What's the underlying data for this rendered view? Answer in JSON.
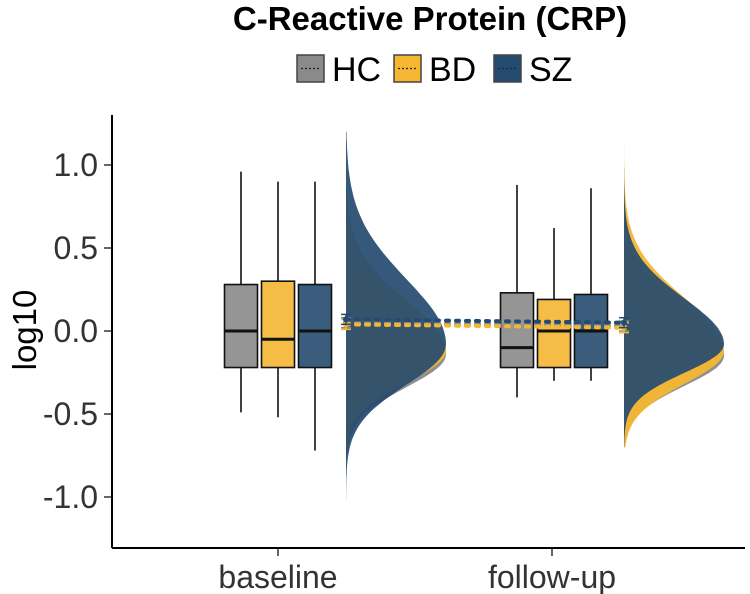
{
  "chart_data": {
    "type": "raincloud (boxplot + half-violin density + mean points)",
    "title": "C-Reactive Protein (CRP)",
    "xlabel": "",
    "ylabel": "log10",
    "ylim": [
      -1.3,
      1.3
    ],
    "yticks": [
      1.0,
      0.5,
      0.0,
      -0.5,
      -1.0
    ],
    "ytick_labels": [
      "1.0",
      "0.5",
      "0.0",
      "-0.5",
      "-1.0"
    ],
    "categories": [
      "baseline",
      "follow-up"
    ],
    "legend": [
      {
        "key": "HC",
        "label": "HC",
        "color": "#8a8a8a"
      },
      {
        "key": "BD",
        "label": "BD",
        "color": "#f5b632"
      },
      {
        "key": "SZ",
        "label": "SZ",
        "color": "#254b70"
      }
    ],
    "series": [
      {
        "name": "HC",
        "boxes": [
          {
            "category": "baseline",
            "whisker_low": -0.49,
            "q1": -0.22,
            "median": 0.0,
            "q3": 0.28,
            "whisker_high": 0.96
          },
          {
            "category": "follow-up",
            "whisker_low": -0.4,
            "q1": -0.22,
            "median": -0.1,
            "q3": 0.23,
            "whisker_high": 0.88
          }
        ],
        "means": [
          {
            "category": "baseline",
            "mean": 0.05,
            "ci": [
              0.02,
              0.08
            ]
          },
          {
            "category": "follow-up",
            "mean": 0.03,
            "ci": [
              0.0,
              0.06
            ]
          }
        ]
      },
      {
        "name": "BD",
        "boxes": [
          {
            "category": "baseline",
            "whisker_low": -0.52,
            "q1": -0.22,
            "median": -0.05,
            "q3": 0.3,
            "whisker_high": 0.9
          },
          {
            "category": "follow-up",
            "whisker_low": -0.3,
            "q1": -0.22,
            "median": 0.0,
            "q3": 0.19,
            "whisker_high": 0.62
          }
        ],
        "means": [
          {
            "category": "baseline",
            "mean": 0.04,
            "ci": [
              0.01,
              0.07
            ]
          },
          {
            "category": "follow-up",
            "mean": 0.02,
            "ci": [
              -0.01,
              0.05
            ]
          }
        ]
      },
      {
        "name": "SZ",
        "boxes": [
          {
            "category": "baseline",
            "whisker_low": -0.72,
            "q1": -0.22,
            "median": 0.0,
            "q3": 0.28,
            "whisker_high": 0.9
          },
          {
            "category": "follow-up",
            "whisker_low": -0.3,
            "q1": -0.22,
            "median": 0.0,
            "q3": 0.22,
            "whisker_high": 0.86
          }
        ],
        "means": [
          {
            "category": "baseline",
            "mean": 0.07,
            "ci": [
              0.04,
              0.1
            ]
          },
          {
            "category": "follow-up",
            "mean": 0.05,
            "ci": [
              0.02,
              0.08
            ]
          }
        ]
      }
    ],
    "densities": [
      {
        "category": "baseline",
        "support": [
          -1.05,
          1.2
        ],
        "curves": [
          {
            "name": "HC",
            "peak_at": -0.14,
            "spread": 0.22
          },
          {
            "name": "BD",
            "peak_at": -0.12,
            "spread": 0.21
          },
          {
            "name": "SZ",
            "peak_at": -0.08,
            "spread": 0.27
          }
        ]
      },
      {
        "category": "follow-up",
        "support": [
          -0.7,
          1.2
        ],
        "curves": [
          {
            "name": "HC",
            "peak_at": -0.15,
            "spread": 0.2
          },
          {
            "name": "BD",
            "peak_at": -0.12,
            "spread": 0.22
          },
          {
            "name": "SZ",
            "peak_at": -0.08,
            "spread": 0.19
          }
        ]
      }
    ]
  }
}
